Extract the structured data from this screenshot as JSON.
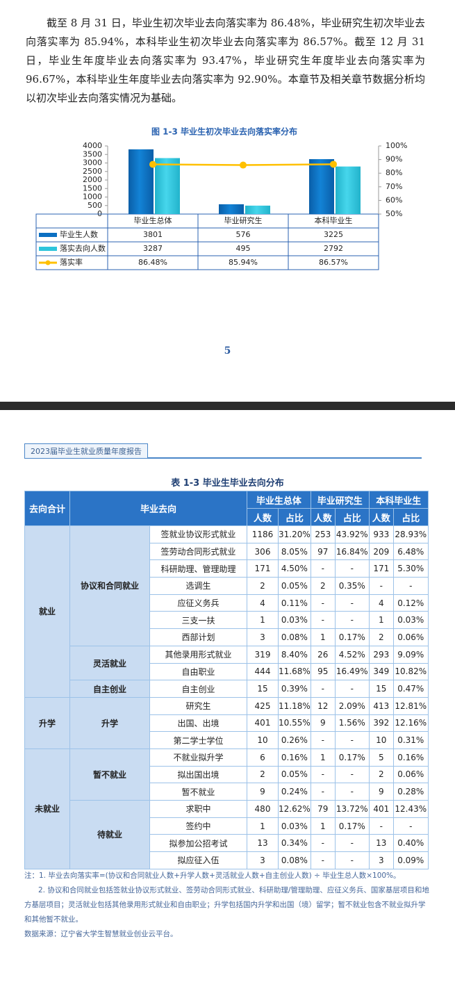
{
  "paragraph": "截至 8 月 31 日，毕业生初次毕业去向落实率为 86.48%，毕业研究生初次毕业去向落实率为 85.94%，本科毕业生初次毕业去向落实率为 86.57%。截至 12 月 31 日，毕业生年度毕业去向落实率为 93.47%，毕业研究生年度毕业去向落实率为 96.67%，本科毕业生年度毕业去向落实率为 92.90%。本章节及相关章节数据分析均以初次毕业去向落实情况为基础。",
  "chart_data": {
    "type": "bar",
    "title": "图 1-3  毕业生初次毕业去向落实率分布",
    "categories": [
      "毕业生总体",
      "毕业研究生",
      "本科毕业生"
    ],
    "series": [
      {
        "name": "毕业生人数",
        "color": "#0b6fc2",
        "values": [
          3801,
          576,
          3225
        ]
      },
      {
        "name": "落实去向人数",
        "color": "#2ec5dc",
        "values": [
          3287,
          495,
          2792
        ]
      },
      {
        "name": "落实率",
        "color": "#ffc000",
        "type": "line",
        "axis": "y2",
        "values": [
          86.48,
          85.94,
          86.57
        ],
        "value_labels": [
          "86.48%",
          "85.94%",
          "86.57%"
        ]
      }
    ],
    "ylim": [
      0,
      4000
    ],
    "yticks": [
      0,
      500,
      1000,
      1500,
      2000,
      2500,
      3000,
      3500,
      4000
    ],
    "y2lim": [
      50,
      100
    ],
    "y2ticks": [
      {
        "value": 50,
        "label": "50%"
      },
      {
        "value": 60,
        "label": "60%"
      },
      {
        "value": 70,
        "label": "70%"
      },
      {
        "value": 80,
        "label": "80%"
      },
      {
        "value": 90,
        "label": "90%"
      },
      {
        "value": 100,
        "label": "100%"
      }
    ]
  },
  "page_number": "5",
  "running_header": "2023届毕业生就业质量年度报告",
  "table": {
    "title": "表 1-3  毕业生毕业去向分布",
    "head_group": "去向合计",
    "head_direction": "毕业去向",
    "columns": [
      "毕业生总体",
      "毕业研究生",
      "本科毕业生"
    ],
    "subheaders": [
      "人数",
      "占比",
      "人数",
      "占比",
      "人数",
      "占比"
    ],
    "groups": [
      {
        "label": "就业",
        "subgroups": [
          {
            "label": "协议和合同就业",
            "rows": [
              [
                "签就业协议形式就业",
                "1186",
                "31.20%",
                "253",
                "43.92%",
                "933",
                "28.93%"
              ],
              [
                "签劳动合同形式就业",
                "306",
                "8.05%",
                "97",
                "16.84%",
                "209",
                "6.48%"
              ],
              [
                "科研助理、管理助理",
                "171",
                "4.50%",
                "-",
                "-",
                "171",
                "5.30%"
              ],
              [
                "选调生",
                "2",
                "0.05%",
                "2",
                "0.35%",
                "-",
                "-"
              ],
              [
                "应征义务兵",
                "4",
                "0.11%",
                "-",
                "-",
                "4",
                "0.12%"
              ],
              [
                "三支一扶",
                "1",
                "0.03%",
                "-",
                "-",
                "1",
                "0.03%"
              ],
              [
                "西部计划",
                "3",
                "0.08%",
                "1",
                "0.17%",
                "2",
                "0.06%"
              ]
            ]
          },
          {
            "label": "灵活就业",
            "rows": [
              [
                "其他录用形式就业",
                "319",
                "8.40%",
                "26",
                "4.52%",
                "293",
                "9.09%"
              ],
              [
                "自由职业",
                "444",
                "11.68%",
                "95",
                "16.49%",
                "349",
                "10.82%"
              ]
            ]
          },
          {
            "label": "自主创业",
            "rows": [
              [
                "自主创业",
                "15",
                "0.39%",
                "-",
                "-",
                "15",
                "0.47%"
              ]
            ]
          }
        ]
      },
      {
        "label": "升学",
        "subgroups": [
          {
            "label": "升学",
            "rows": [
              [
                "研究生",
                "425",
                "11.18%",
                "12",
                "2.09%",
                "413",
                "12.81%"
              ],
              [
                "出国、出境",
                "401",
                "10.55%",
                "9",
                "1.56%",
                "392",
                "12.16%"
              ],
              [
                "第二学士学位",
                "10",
                "0.26%",
                "-",
                "-",
                "10",
                "0.31%"
              ]
            ]
          }
        ]
      },
      {
        "label": "未就业",
        "subgroups": [
          {
            "label": "暂不就业",
            "rows": [
              [
                "不就业拟升学",
                "6",
                "0.16%",
                "1",
                "0.17%",
                "5",
                "0.16%"
              ],
              [
                "拟出国出境",
                "2",
                "0.05%",
                "-",
                "-",
                "2",
                "0.06%"
              ],
              [
                "暂不就业",
                "9",
                "0.24%",
                "-",
                "-",
                "9",
                "0.28%"
              ]
            ]
          },
          {
            "label": "待就业",
            "rows": [
              [
                "求职中",
                "480",
                "12.62%",
                "79",
                "13.72%",
                "401",
                "12.43%"
              ],
              [
                "签约中",
                "1",
                "0.03%",
                "1",
                "0.17%",
                "-",
                "-"
              ],
              [
                "拟参加公招考试",
                "13",
                "0.34%",
                "-",
                "-",
                "13",
                "0.40%"
              ],
              [
                "拟应征入伍",
                "3",
                "0.08%",
                "-",
                "-",
                "3",
                "0.09%"
              ]
            ]
          }
        ]
      }
    ]
  },
  "notes": [
    "注：1. 毕业去向落实率=(协议和合同就业人数+升学人数+灵活就业人数+自主创业人数) ÷ 毕业生总人数×100%。",
    "2. 协议和合同就业包括签就业协议形式就业、签劳动合同形式就业、科研助理/管理助理、应征义务兵、国家基层项目和地方基层项目；灵活就业包括其他录用形式就业和自由职业；升学包括国内升学和出国（境）留学；暂不就业包含不就业拟升学和其他暂不就业。",
    "数据来源：辽宁省大学生智慧就业创业云平台。"
  ]
}
